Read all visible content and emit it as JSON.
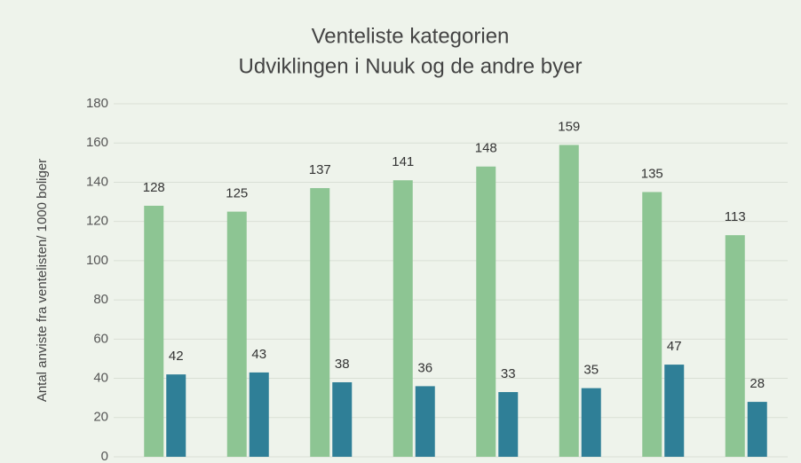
{
  "chart_data": {
    "type": "bar",
    "title": "Venteliste kategorien",
    "subtitle": "Udviklingen i Nuuk og de andre byer",
    "ylabel": "Antal anviste fra ventelisten/ 1000 boliger",
    "categories": [
      null,
      null,
      null,
      null,
      null,
      null,
      null,
      null
    ],
    "series": [
      {
        "color": "#8dc593",
        "values": [
          128,
          125,
          137,
          141,
          148,
          159,
          135,
          113
        ]
      },
      {
        "color": "#2f7f97",
        "values": [
          42,
          43,
          38,
          36,
          33,
          35,
          47,
          28
        ]
      }
    ],
    "ylim": [
      0,
      180
    ],
    "yticks": [
      0,
      20,
      40,
      60,
      80,
      100,
      120,
      140,
      160,
      180
    ],
    "grid": true
  }
}
